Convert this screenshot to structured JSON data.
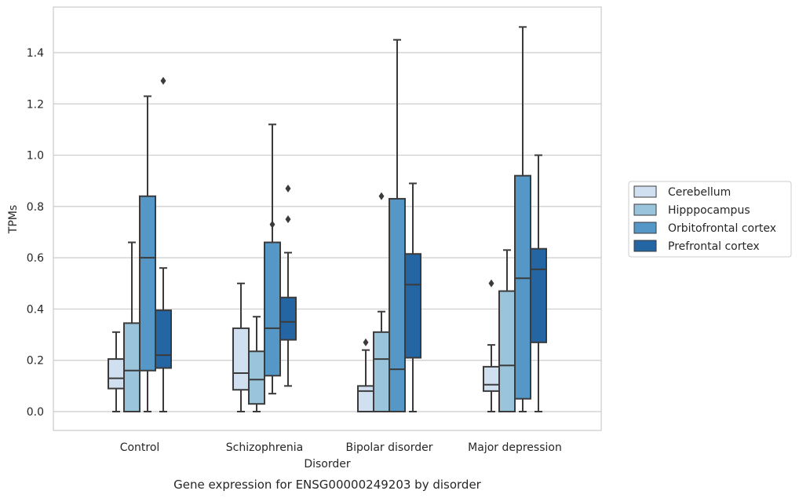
{
  "chart_data": {
    "type": "box",
    "caption": "Gene expression for ENSG00000249203 by disorder",
    "xlabel": "Disorder",
    "ylabel": "TPMs",
    "ylim": [
      -0.07,
      1.58
    ],
    "yticks": [
      0.0,
      0.2,
      0.4,
      0.6,
      0.8,
      1.0,
      1.2,
      1.4
    ],
    "ytick_labels": [
      "0.0",
      "0.2",
      "0.4",
      "0.6",
      "0.8",
      "1.0",
      "1.2",
      "1.4"
    ],
    "grid": "horizontal",
    "legend_position": "right",
    "categories": [
      "Control",
      "Schizophrenia",
      "Bipolar disorder",
      "Major depression"
    ],
    "series": [
      {
        "name": "Cerebellum",
        "color": "#d0e0f0",
        "boxes": [
          {
            "whislo": 0.0,
            "q1": 0.09,
            "med": 0.13,
            "q3": 0.205,
            "whishi": 0.31,
            "fliers": []
          },
          {
            "whislo": 0.0,
            "q1": 0.085,
            "med": 0.15,
            "q3": 0.325,
            "whishi": 0.5,
            "fliers": []
          },
          {
            "whislo": 0.0,
            "q1": 0.0,
            "med": 0.08,
            "q3": 0.1,
            "whishi": 0.24,
            "fliers": [
              0.27
            ]
          },
          {
            "whislo": 0.0,
            "q1": 0.08,
            "med": 0.105,
            "q3": 0.175,
            "whishi": 0.26,
            "fliers": [
              0.5
            ]
          }
        ]
      },
      {
        "name": "Hipppocampus",
        "color": "#9ac3dc",
        "boxes": [
          {
            "whislo": 0.0,
            "q1": 0.0,
            "med": 0.16,
            "q3": 0.345,
            "whishi": 0.66,
            "fliers": []
          },
          {
            "whislo": 0.0,
            "q1": 0.03,
            "med": 0.125,
            "q3": 0.235,
            "whishi": 0.37,
            "fliers": []
          },
          {
            "whislo": 0.0,
            "q1": 0.0,
            "med": 0.205,
            "q3": 0.31,
            "whishi": 0.39,
            "fliers": [
              0.84
            ]
          },
          {
            "whislo": 0.0,
            "q1": 0.0,
            "med": 0.18,
            "q3": 0.47,
            "whishi": 0.63,
            "fliers": []
          }
        ]
      },
      {
        "name": "Orbitofrontal cortex",
        "color": "#5598c8",
        "boxes": [
          {
            "whislo": 0.0,
            "q1": 0.16,
            "med": 0.6,
            "q3": 0.84,
            "whishi": 1.23,
            "fliers": []
          },
          {
            "whislo": 0.07,
            "q1": 0.14,
            "med": 0.325,
            "q3": 0.66,
            "whishi": 1.12,
            "fliers": [
              0.73
            ]
          },
          {
            "whislo": 0.0,
            "q1": 0.0,
            "med": 0.165,
            "q3": 0.83,
            "whishi": 1.45,
            "fliers": []
          },
          {
            "whislo": 0.0,
            "q1": 0.05,
            "med": 0.52,
            "q3": 0.92,
            "whishi": 1.5,
            "fliers": []
          }
        ]
      },
      {
        "name": "Prefrontal cortex",
        "color": "#2465a3",
        "boxes": [
          {
            "whislo": 0.0,
            "q1": 0.17,
            "med": 0.22,
            "q3": 0.395,
            "whishi": 0.56,
            "fliers": [
              1.29
            ]
          },
          {
            "whislo": 0.1,
            "q1": 0.28,
            "med": 0.35,
            "q3": 0.445,
            "whishi": 0.62,
            "fliers": [
              0.75,
              0.87
            ]
          },
          {
            "whislo": 0.0,
            "q1": 0.21,
            "med": 0.495,
            "q3": 0.615,
            "whishi": 0.89,
            "fliers": []
          },
          {
            "whislo": 0.0,
            "q1": 0.27,
            "med": 0.555,
            "q3": 0.635,
            "whishi": 1.0,
            "fliers": []
          }
        ]
      }
    ],
    "colors": {
      "grid": "#cccccc",
      "frame": "#cccccc",
      "box_edge": "#3b3b3b"
    }
  }
}
